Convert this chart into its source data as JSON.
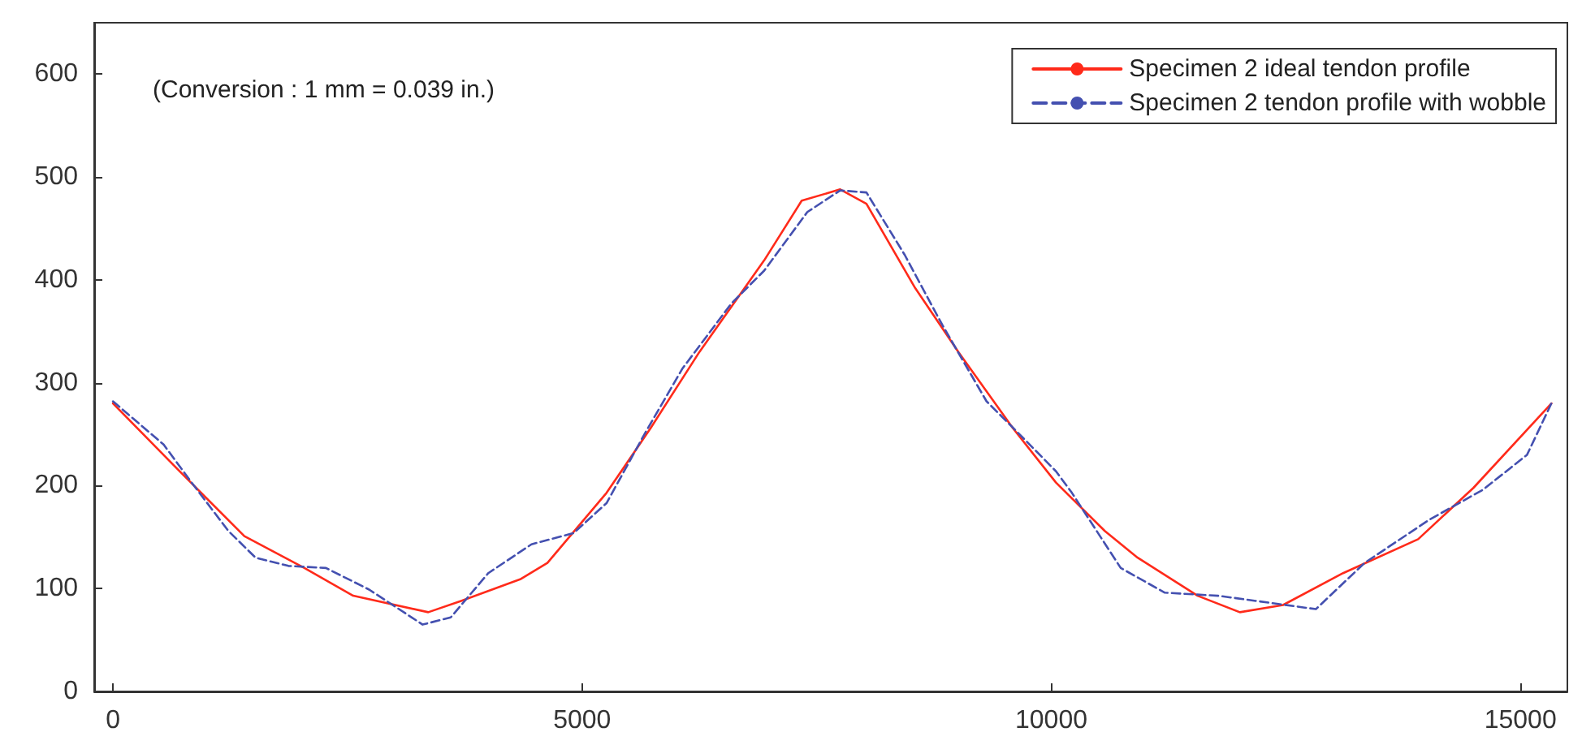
{
  "chart_data": {
    "type": "line",
    "annotations": [
      "(Conversion : 1 mm = 0.039 in.)"
    ],
    "xlim": [
      -200,
      15500
    ],
    "xticks": [
      0,
      5000,
      10000,
      15000
    ],
    "ylim": [
      0,
      650
    ],
    "yticks": [
      0,
      100,
      200,
      300,
      400,
      500,
      600
    ],
    "grid": false,
    "legend": "top right",
    "marker": "none",
    "series": [
      {
        "name": "Specimen 2 ideal tendon profile",
        "color": "#ff2a1a",
        "line_style": "solid",
        "x": [
          0,
          710,
          1400,
          2040,
          2560,
          3360,
          3710,
          4340,
          4630,
          5260,
          5730,
          6250,
          6940,
          7340,
          7750,
          8030,
          8550,
          9010,
          9590,
          10050,
          10570,
          10920,
          11560,
          12010,
          12470,
          13110,
          13910,
          14500,
          15330
        ],
        "values": [
          280,
          214,
          151,
          120,
          93,
          77,
          88,
          109,
          125,
          193,
          256,
          330,
          419,
          477,
          488,
          474,
          392,
          330,
          256,
          203,
          156,
          130,
          93,
          77,
          84,
          115,
          148,
          198,
          280
        ]
      },
      {
        "name": "Specimen 2 tendon profile with wobble",
        "color": "#4450b0",
        "line_style": "dashed",
        "x": [
          0,
          540,
          830,
          1230,
          1520,
          1870,
          2270,
          2730,
          3300,
          3600,
          4000,
          4460,
          4910,
          5260,
          5670,
          6070,
          6590,
          6940,
          7400,
          7750,
          8030,
          8440,
          8840,
          9310,
          9650,
          10050,
          10220,
          10740,
          11210,
          11780,
          12420,
          12820,
          13340,
          14030,
          14600,
          15070,
          15330
        ],
        "values": [
          282,
          240,
          204,
          156,
          130,
          122,
          120,
          99,
          65,
          72,
          115,
          143,
          154,
          183,
          251,
          314,
          377,
          409,
          466,
          487,
          485,
          424,
          356,
          282,
          251,
          214,
          193,
          120,
          96,
          93,
          85,
          80,
          125,
          167,
          196,
          230,
          280
        ]
      }
    ]
  }
}
